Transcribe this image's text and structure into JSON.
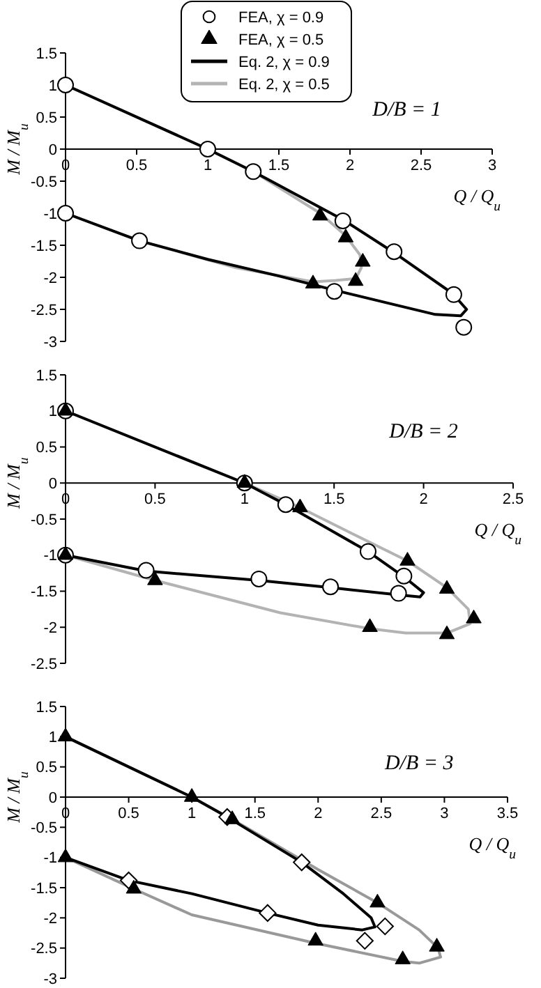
{
  "chart_data": [
    {
      "type": "line",
      "annotations": [
        "D/B = 1"
      ],
      "xlabel": "Q / Q$_{u}$",
      "ylabel": "M / M$_{u}$",
      "xlim": [
        0,
        3
      ],
      "xticks": [
        0,
        0.5,
        1,
        1.5,
        2,
        2.5,
        3
      ],
      "ylim": [
        -3,
        1.5
      ],
      "yticks": [
        -3,
        -2.5,
        -2,
        -1.5,
        -1,
        -0.5,
        0,
        0.5,
        1,
        1.5
      ],
      "legend": "top",
      "series": [
        {
          "name": "FEA, χ = 0.9",
          "type": "scatter",
          "marker": "circle",
          "color": "#000000",
          "x": [
            0,
            1,
            1.32,
            1.95,
            2.31,
            2.73,
            2.8,
            1.89,
            0.52,
            0
          ],
          "values": [
            1,
            0,
            -0.35,
            -1.12,
            -1.6,
            -2.27,
            -2.78,
            -2.22,
            -1.43,
            -1
          ]
        },
        {
          "name": "FEA, χ = 0.5",
          "type": "scatter",
          "marker": "triangle",
          "color": "#000000",
          "x": [
            1.79,
            1.97,
            2.09,
            2.04,
            1.74
          ],
          "values": [
            -1.04,
            -1.38,
            -1.76,
            -2.06,
            -2.1
          ]
        },
        {
          "name": "Eq. 2, χ = 0.9",
          "type": "line",
          "color": "#000000",
          "x": [
            0,
            1,
            1.32,
            1.95,
            2.3,
            2.72,
            2.82,
            2.78,
            2.6,
            2.3,
            1.89,
            1.5,
            1,
            0.52,
            0
          ],
          "values": [
            1,
            0,
            -0.35,
            -1.1,
            -1.6,
            -2.25,
            -2.5,
            -2.6,
            -2.58,
            -2.42,
            -2.2,
            -1.98,
            -1.72,
            -1.43,
            -1
          ]
        },
        {
          "name": "Eq. 2, χ = 0.5",
          "type": "line",
          "color": "#b3b3b3",
          "x": [
            0,
            1,
            1.32,
            1.79,
            1.97,
            2.07,
            2.08,
            2.04,
            1.9,
            1.74,
            1.2,
            0.52,
            0
          ],
          "values": [
            1,
            0,
            -0.35,
            -1,
            -1.35,
            -1.65,
            -1.85,
            -2.02,
            -2.05,
            -2.07,
            -1.85,
            -1.43,
            -1
          ]
        }
      ]
    },
    {
      "type": "line",
      "annotations": [
        "D/B = 2"
      ],
      "xlabel": "Q / Q$_{u}$",
      "ylabel": "M / M$_{u}$",
      "xlim": [
        0,
        2.5
      ],
      "xticks": [
        0,
        0.5,
        1,
        1.5,
        2,
        2.5
      ],
      "ylim": [
        -2.5,
        1.5
      ],
      "yticks": [
        -2.5,
        -2,
        -1.5,
        -1,
        -0.5,
        0,
        0.5,
        1,
        1.5
      ],
      "series": [
        {
          "type": "scatter",
          "marker": "circle",
          "color": "#000000",
          "x": [
            0,
            1,
            1.23,
            1.69,
            1.89,
            1.86,
            1.48,
            1.08,
            0.45,
            0
          ],
          "values": [
            1,
            0,
            -0.3,
            -0.95,
            -1.29,
            -1.53,
            -1.44,
            -1.33,
            -1.21,
            -1
          ]
        },
        {
          "type": "scatter",
          "marker": "triangle",
          "color": "#000000",
          "x": [
            0,
            1,
            1.31,
            1.91,
            2.13,
            2.28,
            2.13,
            1.7,
            0.5,
            0
          ],
          "values": [
            1,
            0,
            -0.34,
            -1.08,
            -1.47,
            -1.88,
            -2.1,
            -2,
            -1.35,
            -1
          ]
        },
        {
          "type": "line",
          "color": "#000000",
          "x": [
            0,
            1,
            1.23,
            1.69,
            1.89,
            2,
            1.98,
            1.86,
            1.48,
            1.08,
            0.45,
            0
          ],
          "values": [
            1,
            0,
            -0.3,
            -0.95,
            -1.3,
            -1.52,
            -1.58,
            -1.55,
            -1.45,
            -1.35,
            -1.22,
            -1
          ]
        },
        {
          "type": "line",
          "color": "#b3b3b3",
          "x": [
            0,
            1,
            1.31,
            1.6,
            1.91,
            2.13,
            2.25,
            2.26,
            2.13,
            1.9,
            1.7,
            1.2,
            0.5,
            0
          ],
          "values": [
            1,
            0,
            -0.34,
            -0.7,
            -1.08,
            -1.45,
            -1.75,
            -1.95,
            -2.08,
            -2.08,
            -2.02,
            -1.8,
            -1.35,
            -1
          ]
        }
      ]
    },
    {
      "type": "line",
      "annotations": [
        "D/B = 3"
      ],
      "xlabel": "Q / Q$_{u}$",
      "ylabel": "M / M$_{u}$",
      "xlim": [
        0,
        3.5
      ],
      "xticks": [
        0,
        0.5,
        1,
        1.5,
        2,
        2.5,
        3,
        3.5
      ],
      "ylim": [
        -3,
        1.5
      ],
      "yticks": [
        -3,
        -2.5,
        -2,
        -1.5,
        -1,
        -0.5,
        0,
        0.5,
        1,
        1.5
      ],
      "series": [
        {
          "type": "scatter",
          "marker": "diamond",
          "color": "#000000",
          "x": [
            1.28,
            1.87,
            2.53,
            2.37,
            1.6,
            0.5
          ],
          "values": [
            -0.33,
            -1.08,
            -2.14,
            -2.38,
            -1.92,
            -1.38
          ]
        },
        {
          "type": "scatter",
          "marker": "triangle",
          "color": "#000000",
          "x": [
            0,
            1,
            1.32,
            2.47,
            2.94,
            2.67,
            1.98,
            0.54,
            0
          ],
          "values": [
            1,
            0,
            -0.37,
            -1.75,
            -2.48,
            -2.69,
            -2.38,
            -1.52,
            -1
          ]
        },
        {
          "type": "line",
          "color": "#000000",
          "x": [
            0,
            1,
            1.28,
            1.87,
            2.2,
            2.42,
            2.45,
            2.35,
            2,
            1.6,
            1,
            0.5,
            0
          ],
          "values": [
            1,
            0,
            -0.33,
            -1.08,
            -1.6,
            -2,
            -2.15,
            -2.2,
            -2.12,
            -1.92,
            -1.6,
            -1.38,
            -1
          ]
        },
        {
          "type": "line",
          "color": "#999999",
          "x": [
            0,
            1,
            1.32,
            2,
            2.47,
            2.8,
            2.95,
            2.97,
            2.8,
            2.67,
            1.98,
            1,
            0.54,
            0
          ],
          "values": [
            1,
            0,
            -0.37,
            -1.2,
            -1.75,
            -2.2,
            -2.5,
            -2.65,
            -2.75,
            -2.72,
            -2.42,
            -1.95,
            -1.52,
            -1
          ]
        }
      ]
    }
  ]
}
